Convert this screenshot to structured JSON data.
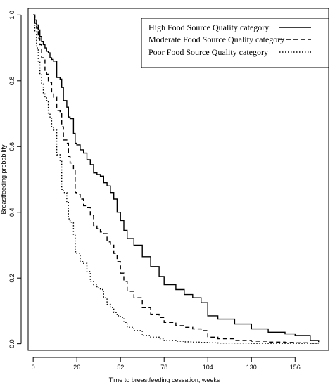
{
  "chart_data": {
    "type": "line",
    "title": "",
    "xlabel": "Time to breastfeeding cessation, weeks",
    "ylabel": "Breastfeeding probability",
    "xlim": [
      -3,
      176
    ],
    "ylim": [
      -0.02,
      1.02
    ],
    "xticks": [
      "0",
      "26",
      "52",
      "78",
      "104",
      "130",
      "156"
    ],
    "yticks": [
      "0.0",
      "0.2",
      "0.4",
      "0.6",
      "0.8",
      "1.0"
    ],
    "grid": false,
    "legend_position": "top-right",
    "series": [
      {
        "name": "High Food Source Quality category",
        "line_style": "solid",
        "x": [
          0,
          1,
          2,
          3,
          4,
          5,
          6,
          7,
          8,
          9,
          10,
          11,
          12,
          14,
          16,
          17,
          18,
          20,
          21,
          22,
          24,
          25,
          26,
          28,
          30,
          32,
          34,
          36,
          38,
          40,
          42,
          44,
          46,
          48,
          50,
          52,
          54,
          56,
          60,
          65,
          70,
          75,
          78,
          85,
          90,
          95,
          100,
          104,
          110,
          120,
          130,
          140,
          150,
          156,
          165,
          170
        ],
        "y": [
          1.0,
          0.985,
          0.97,
          0.955,
          0.935,
          0.92,
          0.91,
          0.9,
          0.89,
          0.885,
          0.87,
          0.865,
          0.86,
          0.81,
          0.805,
          0.78,
          0.74,
          0.72,
          0.69,
          0.685,
          0.64,
          0.61,
          0.605,
          0.59,
          0.58,
          0.56,
          0.545,
          0.52,
          0.515,
          0.51,
          0.49,
          0.48,
          0.46,
          0.44,
          0.4,
          0.375,
          0.345,
          0.32,
          0.3,
          0.265,
          0.235,
          0.205,
          0.18,
          0.165,
          0.15,
          0.14,
          0.125,
          0.085,
          0.075,
          0.06,
          0.045,
          0.035,
          0.03,
          0.025,
          0.01,
          0.005
        ]
      },
      {
        "name": "Moderate Food Source Quality category",
        "line_style": "dashed",
        "x": [
          0,
          1,
          2,
          3,
          4,
          5,
          6,
          7,
          8,
          9,
          10,
          11,
          12,
          14,
          16,
          17,
          18,
          20,
          21,
          22,
          24,
          25,
          26,
          28,
          30,
          32,
          34,
          36,
          38,
          40,
          42,
          44,
          46,
          48,
          50,
          52,
          54,
          56,
          60,
          65,
          70,
          75,
          78,
          85,
          90,
          95,
          100,
          104,
          110,
          120,
          130,
          140,
          150,
          156,
          165,
          170
        ],
        "y": [
          1.0,
          0.975,
          0.96,
          0.93,
          0.91,
          0.87,
          0.865,
          0.83,
          0.82,
          0.8,
          0.795,
          0.76,
          0.75,
          0.71,
          0.7,
          0.66,
          0.62,
          0.61,
          0.57,
          0.55,
          0.53,
          0.46,
          0.455,
          0.44,
          0.42,
          0.415,
          0.39,
          0.36,
          0.35,
          0.34,
          0.335,
          0.31,
          0.3,
          0.275,
          0.25,
          0.215,
          0.19,
          0.16,
          0.14,
          0.11,
          0.09,
          0.08,
          0.065,
          0.055,
          0.05,
          0.045,
          0.04,
          0.02,
          0.015,
          0.01,
          0.008,
          0.005,
          0.004,
          0.003,
          0.002,
          0.002
        ]
      },
      {
        "name": "Poor Food Source Quality category",
        "line_style": "dotted",
        "x": [
          0,
          1,
          2,
          3,
          4,
          5,
          6,
          7,
          8,
          9,
          10,
          11,
          12,
          14,
          16,
          17,
          18,
          20,
          21,
          22,
          24,
          25,
          26,
          28,
          30,
          32,
          34,
          36,
          38,
          40,
          42,
          44,
          46,
          48,
          50,
          52,
          54,
          56,
          60,
          65,
          70,
          75,
          78,
          85,
          90,
          95,
          100,
          104,
          110,
          120,
          130,
          140,
          150,
          156,
          165,
          170
        ],
        "y": [
          1.0,
          0.95,
          0.9,
          0.86,
          0.82,
          0.79,
          0.76,
          0.75,
          0.74,
          0.7,
          0.69,
          0.66,
          0.65,
          0.575,
          0.555,
          0.47,
          0.46,
          0.43,
          0.38,
          0.37,
          0.33,
          0.28,
          0.275,
          0.25,
          0.245,
          0.22,
          0.19,
          0.18,
          0.17,
          0.165,
          0.14,
          0.12,
          0.11,
          0.095,
          0.085,
          0.08,
          0.065,
          0.05,
          0.04,
          0.025,
          0.02,
          0.015,
          0.01,
          0.008,
          0.006,
          0.005,
          0.004,
          0.003,
          0.002,
          0.002,
          0.001,
          0.001,
          0.001,
          0.001,
          0.001,
          0.001
        ]
      }
    ]
  }
}
